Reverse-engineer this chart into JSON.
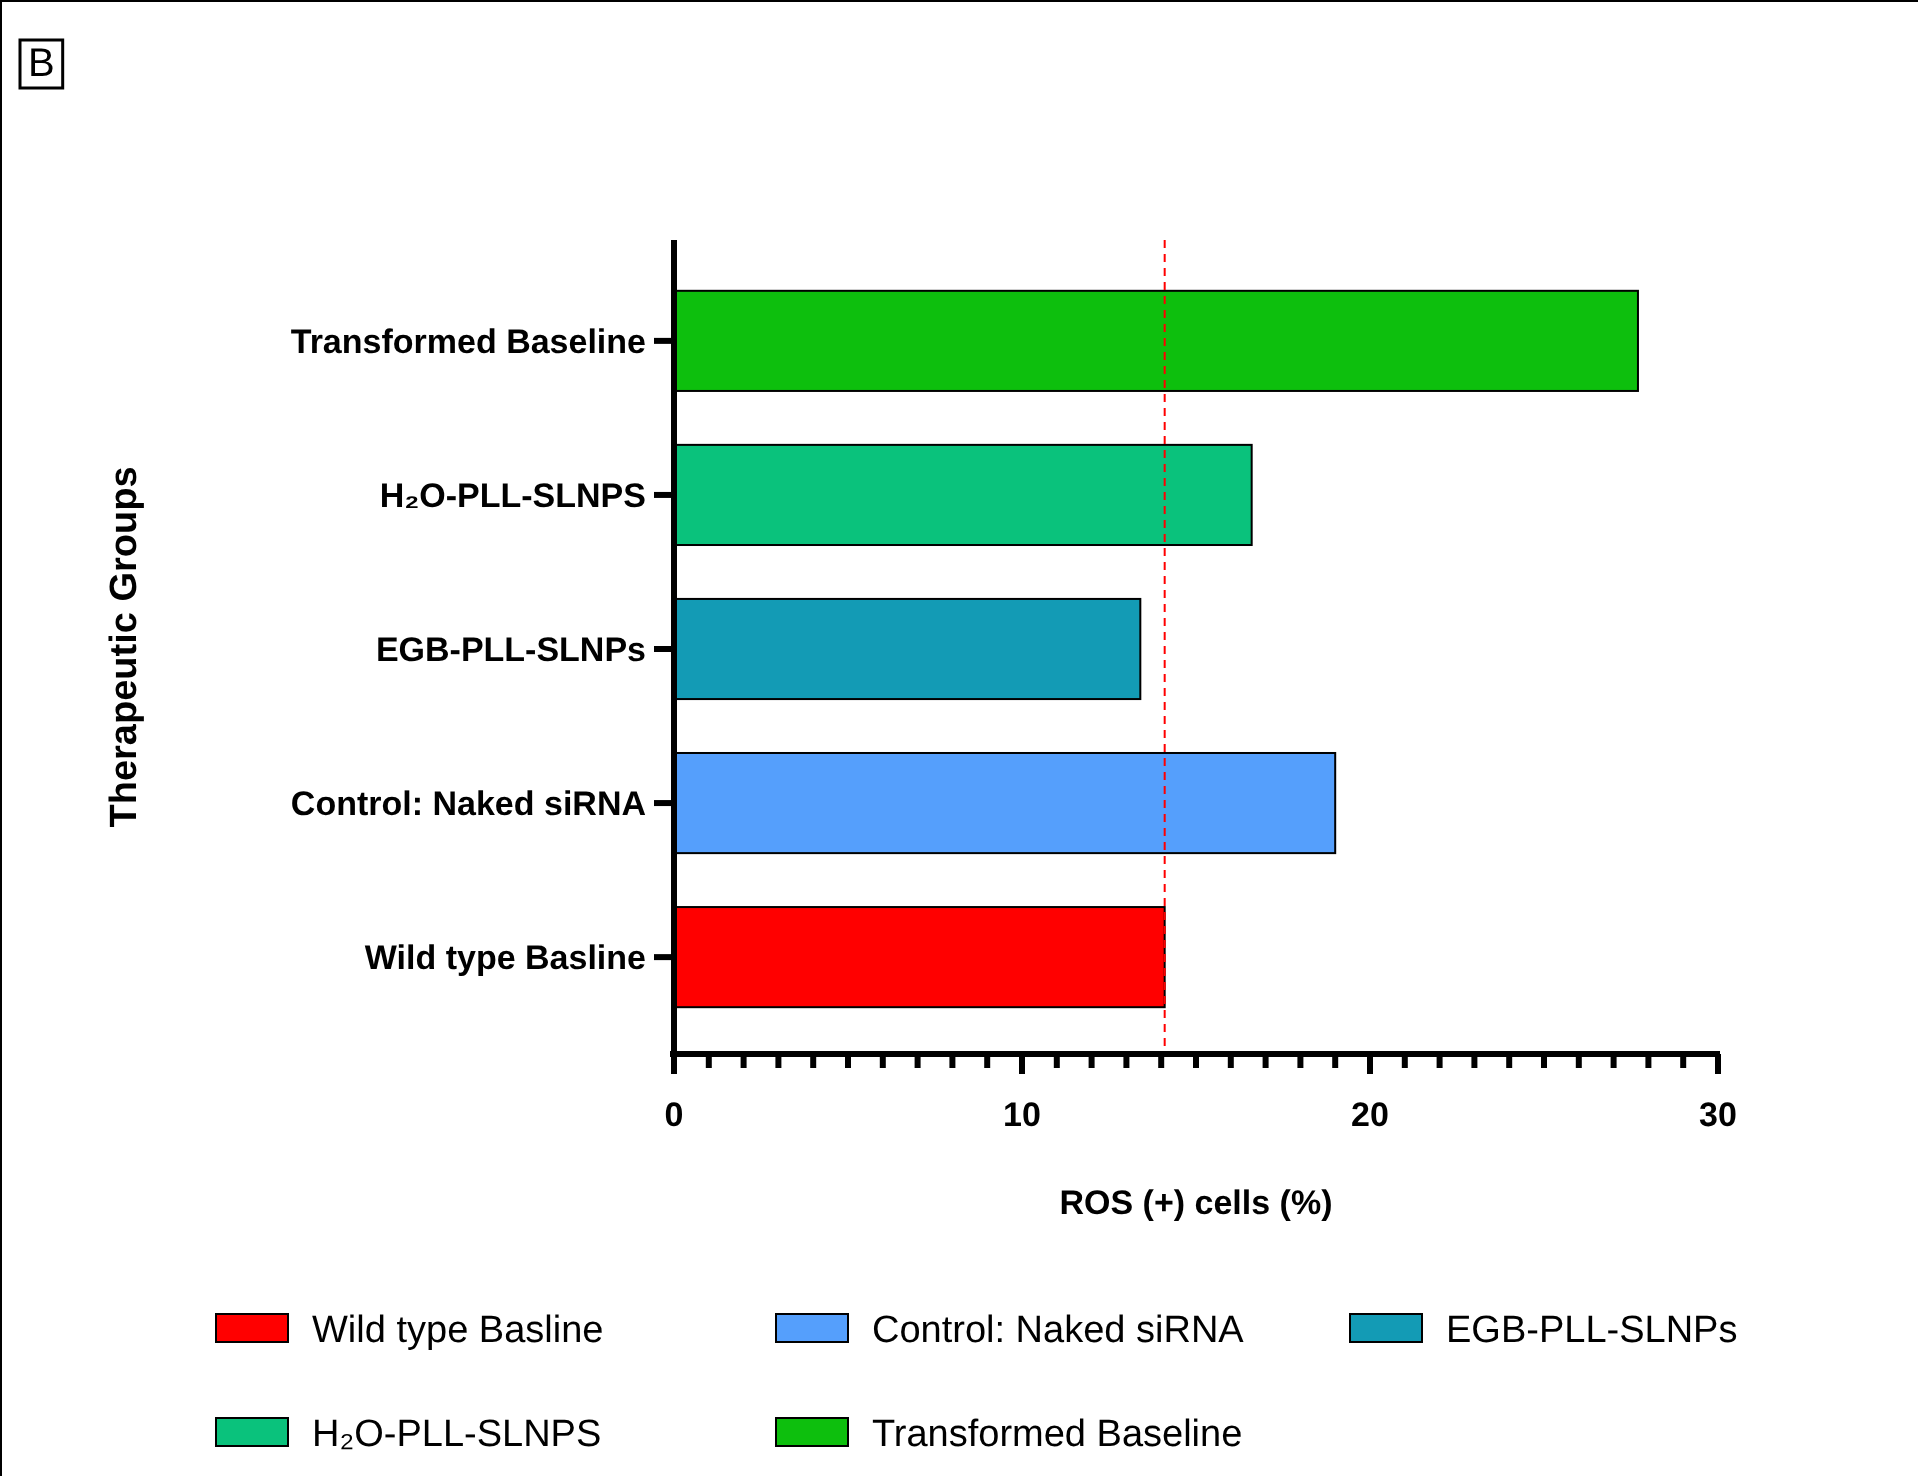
{
  "chart_data": {
    "type": "bar",
    "orientation": "horizontal",
    "xlabel": "ROS (+) cells (%)",
    "ylabel": "Therapeutic Groups",
    "categories": [
      "Transformed Baseline",
      "H₂O-PLL-SLNPS",
      "EGB-PLL-SLNPs",
      "Control: Naked siRNA",
      "Wild type Basline"
    ],
    "series": [
      {
        "name": "Wild type Basline",
        "color": "#ff0000",
        "values": [
          null,
          null,
          null,
          null,
          14.1
        ]
      },
      {
        "name": "Control: Naked siRNA",
        "color": "#559ffc",
        "values": [
          null,
          null,
          null,
          19.0,
          null
        ]
      },
      {
        "name": "EGB-PLL-SLNPs",
        "color": "#139bb5",
        "values": [
          null,
          null,
          13.4,
          null,
          null
        ]
      },
      {
        "name": "H₂O-PLL-SLNPS",
        "color": "#0ac27c",
        "values": [
          null,
          16.6,
          null,
          null,
          null
        ]
      },
      {
        "name": "Transformed Baseline",
        "color": "#0dbf0d",
        "values": [
          27.7,
          null,
          null,
          null,
          null
        ]
      }
    ],
    "xlim": [
      0,
      30
    ],
    "xticks": [
      0,
      {
        "value": 1,
        "label": null
      },
      {
        "value": 2,
        "label": null
      },
      {
        "value": 3,
        "label": null
      },
      {
        "value": 4,
        "label": null
      },
      {
        "value": 5,
        "label": null
      },
      {
        "value": 6,
        "label": null
      },
      {
        "value": 7,
        "label": null
      },
      {
        "value": 8,
        "label": null
      },
      {
        "value": 9,
        "label": null
      },
      10,
      {
        "value": 11,
        "label": null
      },
      {
        "value": 12,
        "label": null
      },
      {
        "value": 13,
        "label": null
      },
      {
        "value": 14,
        "label": null
      },
      {
        "value": 15,
        "label": null
      },
      {
        "value": 16,
        "label": null
      },
      {
        "value": 17,
        "label": null
      },
      {
        "value": 18,
        "label": null
      },
      {
        "value": 19,
        "label": null
      },
      20,
      {
        "value": 21,
        "label": null
      },
      {
        "value": 22,
        "label": null
      },
      {
        "value": 23,
        "label": null
      },
      {
        "value": 24,
        "label": null
      },
      {
        "value": 25,
        "label": null
      },
      {
        "value": 26,
        "label": null
      },
      {
        "value": 27,
        "label": null
      },
      {
        "value": 28,
        "label": null
      },
      {
        "value": 29,
        "label": null
      },
      30
    ],
    "ref_lines": [
      {
        "axis": "x",
        "value": 14.1,
        "color": "#ff0000",
        "line_style": "dashed"
      }
    ],
    "annotations": [
      "B"
    ],
    "legend": "bottom"
  }
}
